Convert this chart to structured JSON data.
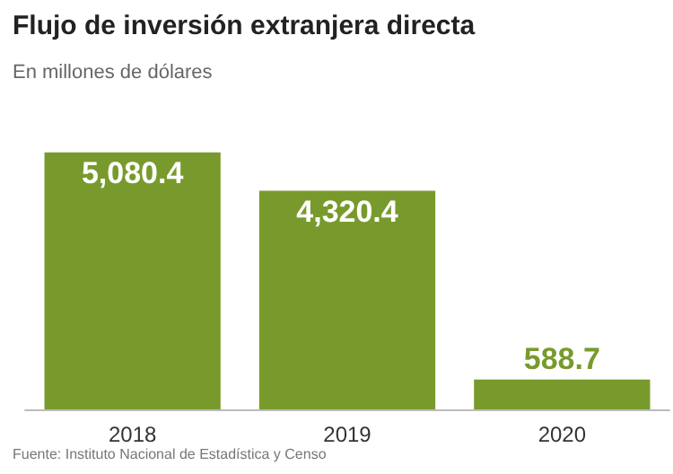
{
  "chart_data": {
    "type": "bar",
    "title": "Flujo de inversión extranjera directa",
    "subtitle": "En millones de dólares",
    "categories": [
      "2018",
      "2019",
      "2020"
    ],
    "values": [
      5080.4,
      4320.4,
      588.7
    ],
    "value_labels": [
      "5,080.4",
      "4,320.4",
      "588.7"
    ],
    "color": "#789a2c",
    "annotations": [
      "Fuente: Instituto Nacional de Estadística y Censo"
    ]
  }
}
